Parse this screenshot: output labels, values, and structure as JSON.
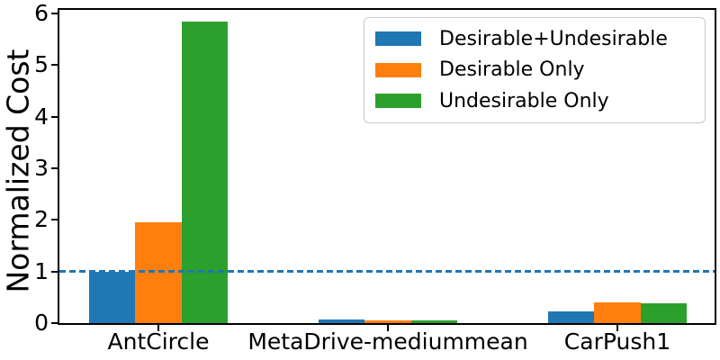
{
  "chart_data": {
    "type": "bar",
    "title": "",
    "xlabel": "",
    "ylabel": "Normalized Cost",
    "categories": [
      "AntCircle",
      "MetaDrive-mediummean",
      "CarPush1"
    ],
    "series": [
      {
        "name": "Desirable+Undesirable",
        "color": "#1f77b4",
        "values": [
          1.0,
          0.07,
          0.23
        ]
      },
      {
        "name": "Desirable Only",
        "color": "#ff7f0e",
        "values": [
          1.96,
          0.06,
          0.4
        ]
      },
      {
        "name": "Undesirable Only",
        "color": "#2ca02c",
        "values": [
          5.85,
          0.06,
          0.39
        ]
      }
    ],
    "yticks": [
      0,
      1,
      2,
      3,
      4,
      5,
      6
    ],
    "ylim": [
      0,
      6.07
    ],
    "reference_line": {
      "y": 1.0,
      "color": "#1f77b4",
      "style": "dashed"
    },
    "legend_position": "upper right",
    "grid": false,
    "axis_color": "#000000",
    "background_color": "#ffffff"
  }
}
